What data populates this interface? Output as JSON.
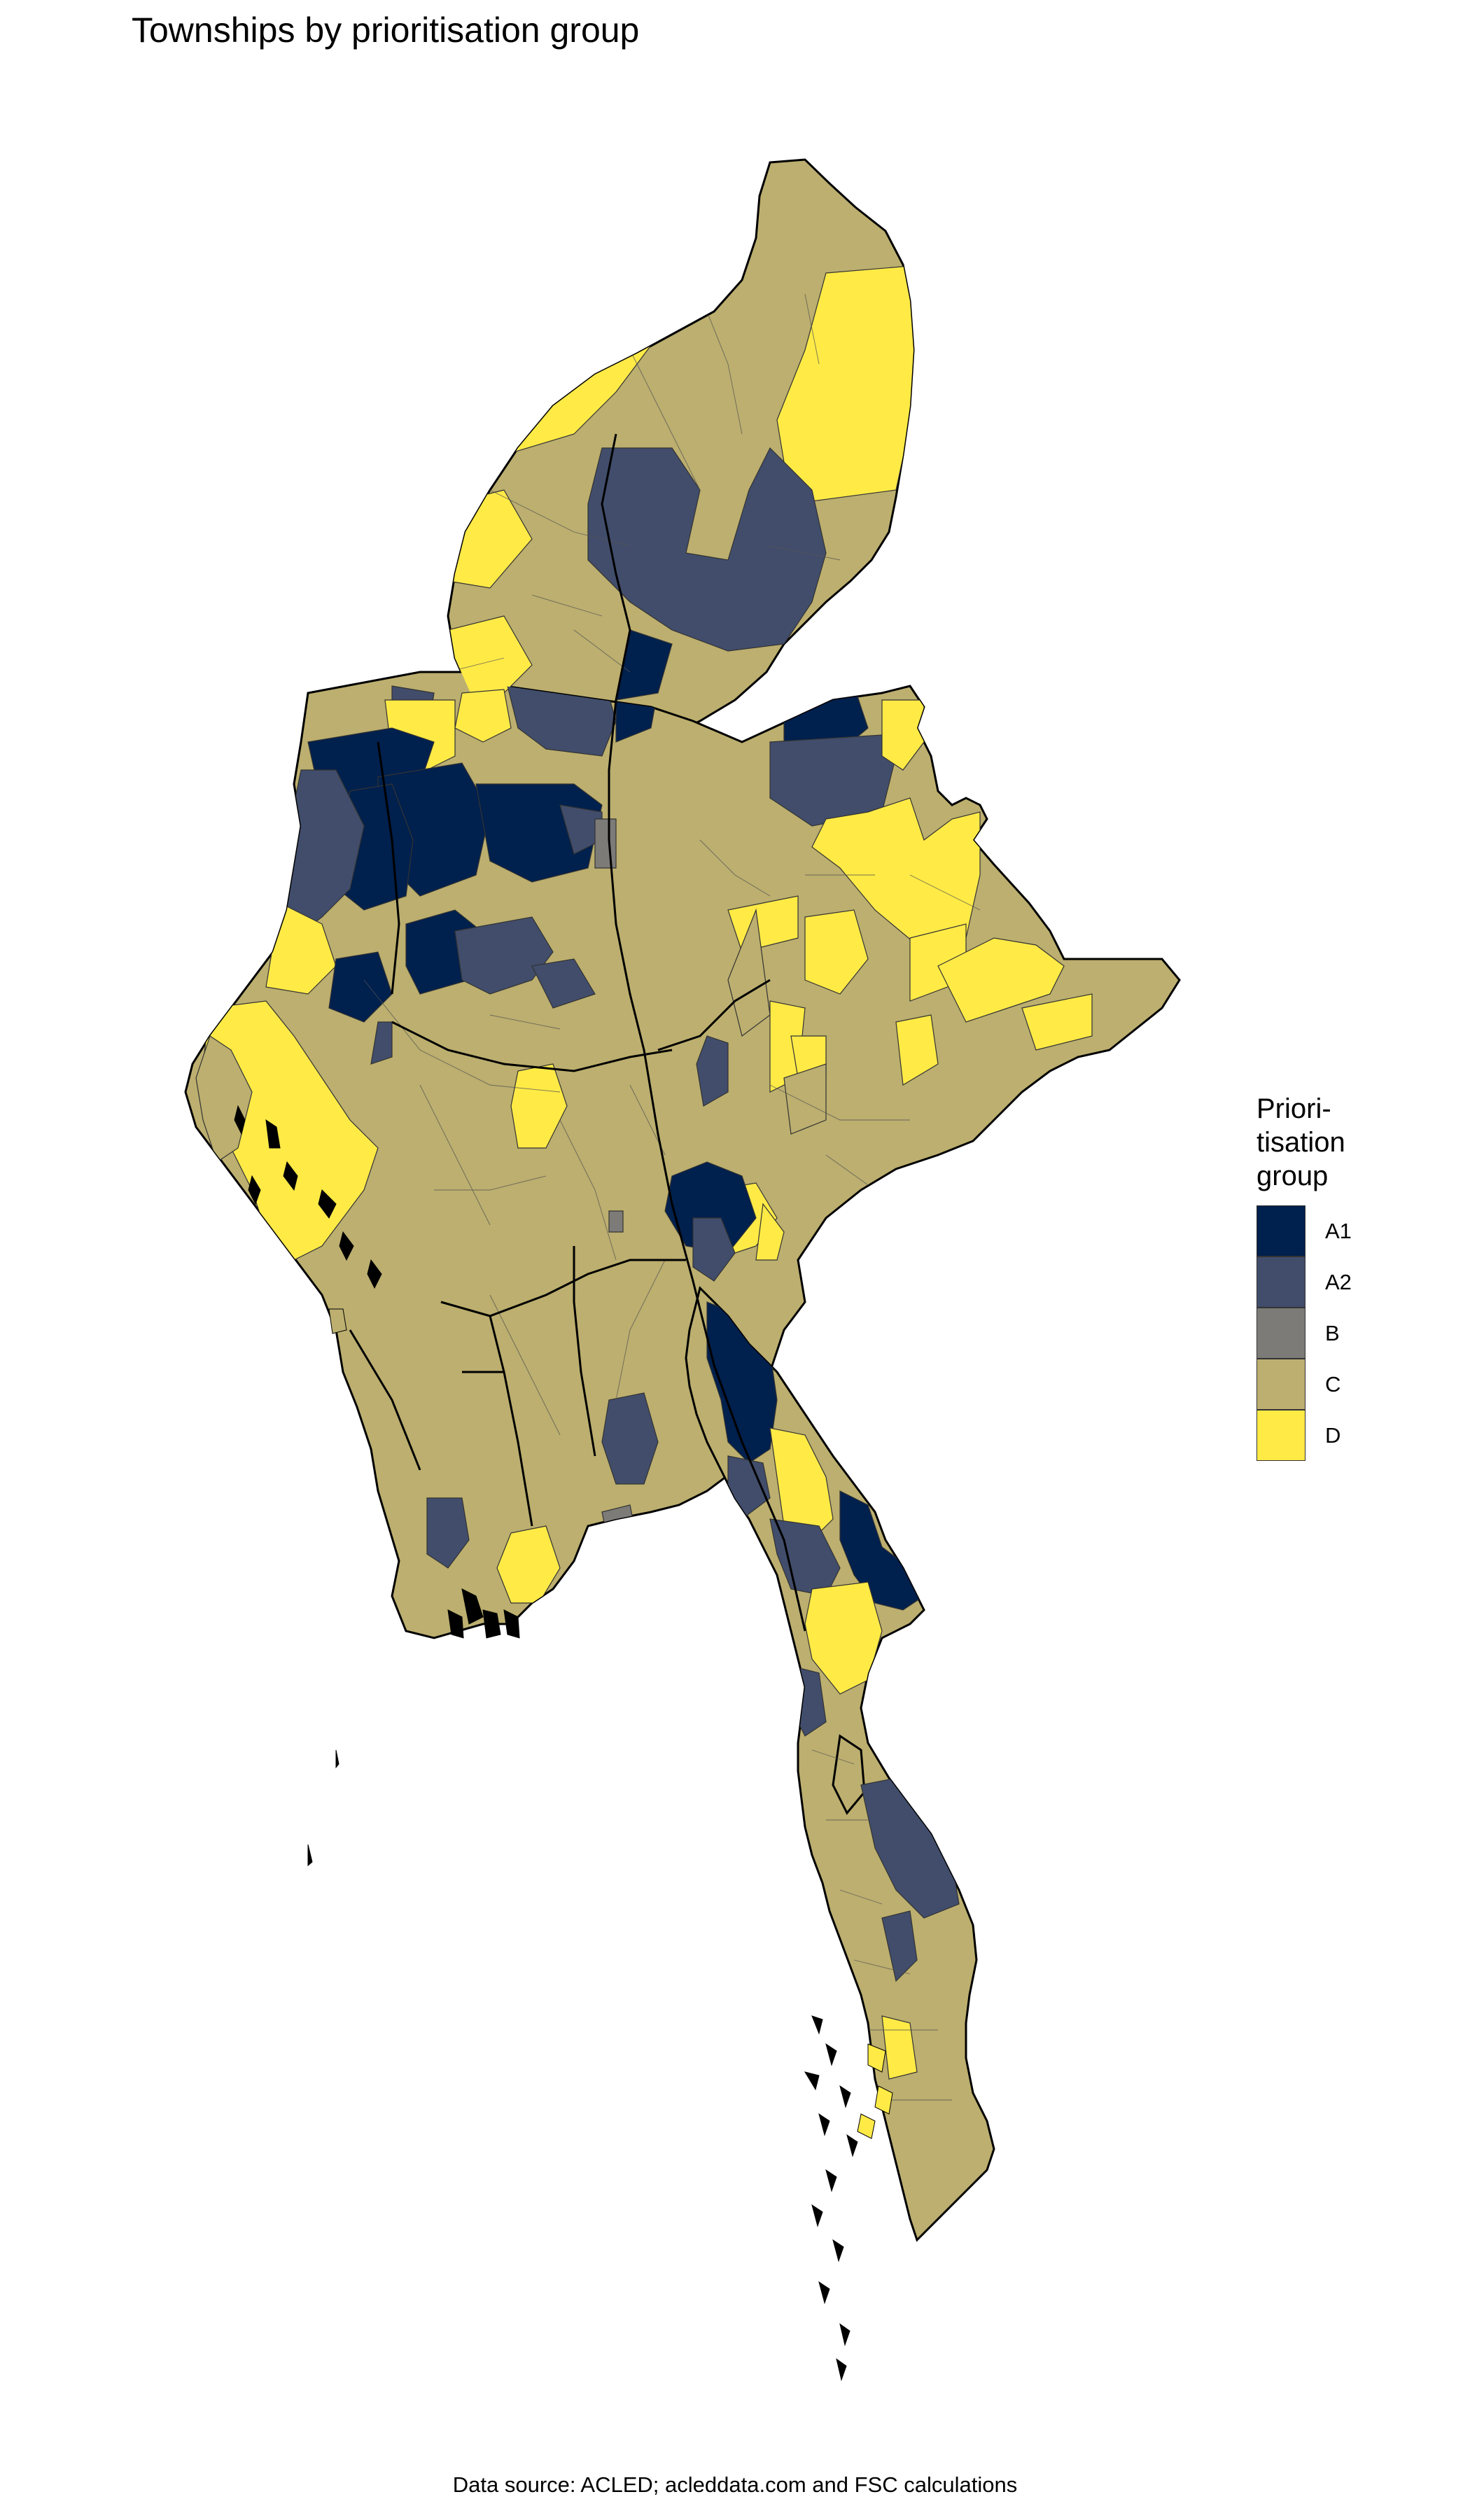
{
  "title": "Townships by prioritisation group",
  "caption": "Data source: ACLED; acleddata.com and FSC calculations",
  "legend": {
    "title_lines": [
      "Priori-",
      "tisation",
      "group"
    ],
    "items": [
      {
        "label": "A1",
        "color": "#00204d"
      },
      {
        "label": "A2",
        "color": "#414d6b"
      },
      {
        "label": "B",
        "color": "#7c7b78"
      },
      {
        "label": "C",
        "color": "#bcaf6f"
      },
      {
        "label": "D",
        "color": "#ffea46"
      }
    ]
  },
  "map": {
    "base_color": "#bcaf6f",
    "border_color": "#000000"
  }
}
